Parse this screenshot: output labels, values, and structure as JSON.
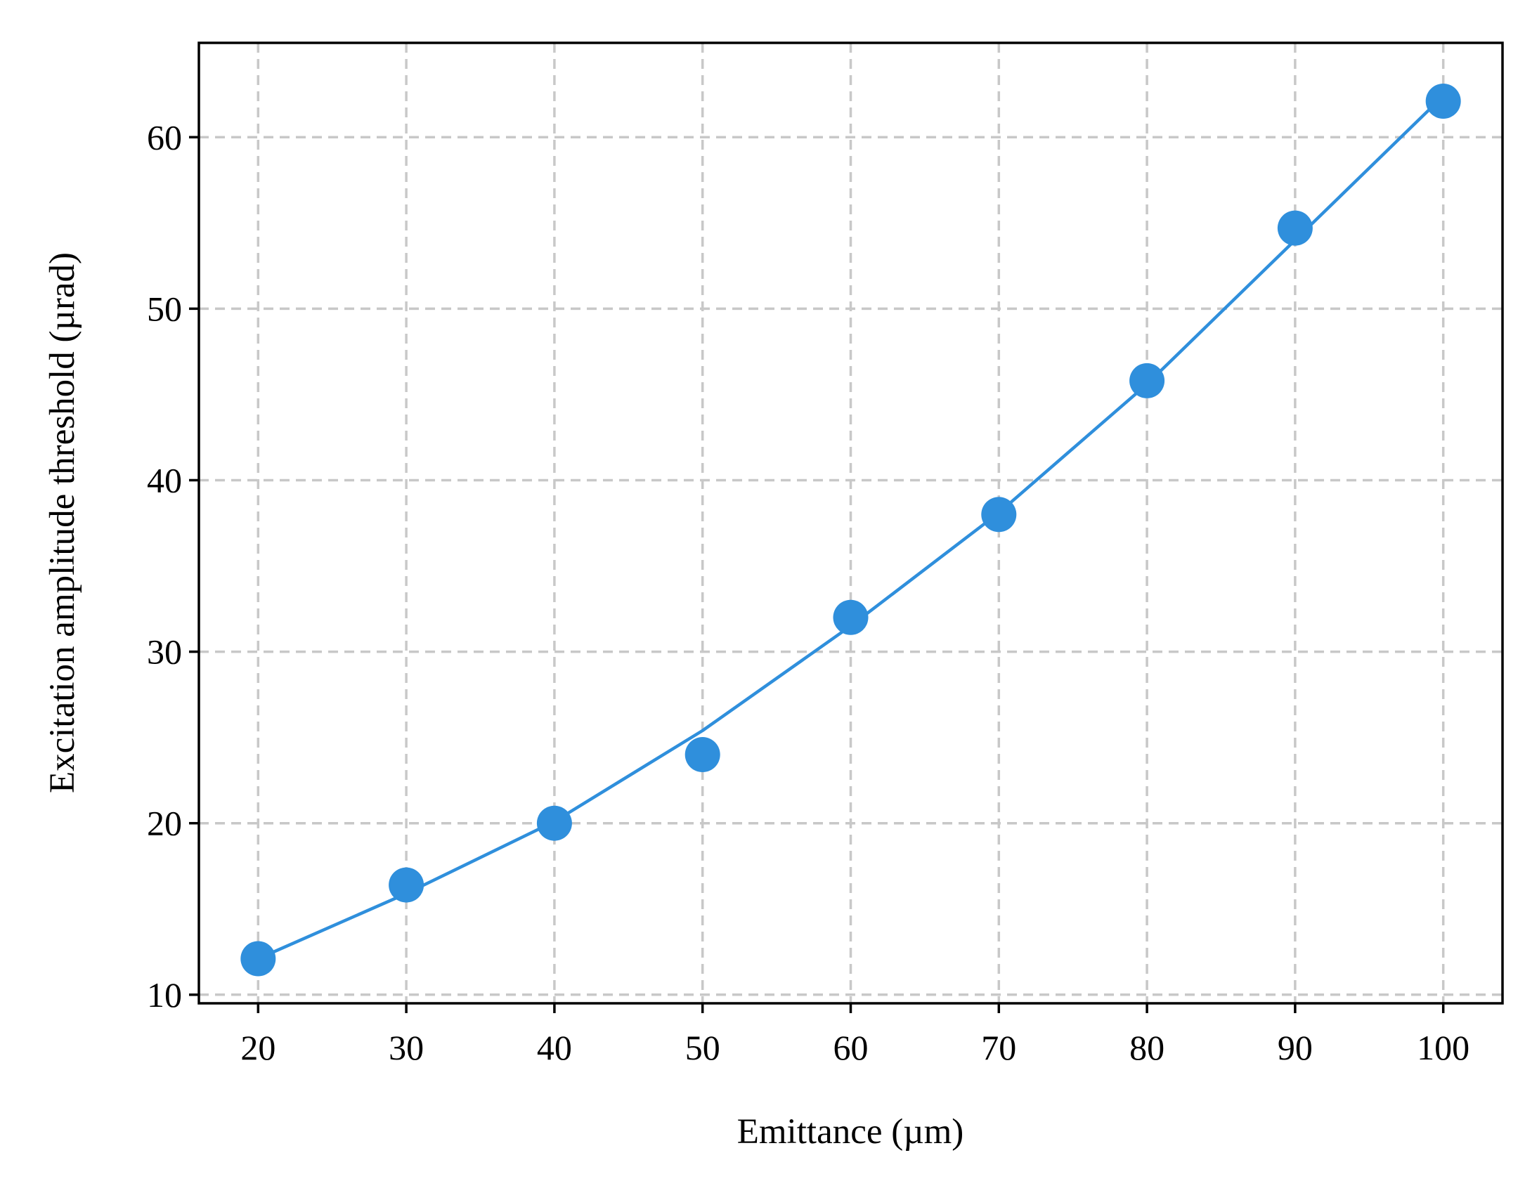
{
  "chart_data": {
    "type": "scatter",
    "title": "",
    "xlabel": "Emittance (µm)",
    "ylabel": "Excitation amplitude threshold (µrad)",
    "xlim": [
      16,
      104
    ],
    "ylim": [
      9.5,
      65.5
    ],
    "xticks": [
      20,
      30,
      40,
      50,
      60,
      70,
      80,
      90,
      100
    ],
    "yticks": [
      10,
      20,
      30,
      40,
      50,
      60
    ],
    "grid": true,
    "grid_style": "dashed",
    "legend": "none",
    "series": [
      {
        "kind": "points",
        "color": "#2f8fdc",
        "x": [
          20,
          30,
          40,
          50,
          60,
          70,
          80,
          90,
          100
        ],
        "y": [
          12.1,
          16.4,
          20.0,
          24.0,
          32.0,
          38.0,
          45.8,
          54.7,
          62.1
        ]
      },
      {
        "kind": "fit-line",
        "color": "#2f8fdc",
        "x": [
          20,
          30,
          40,
          50,
          60,
          70,
          80,
          90,
          100
        ],
        "y": [
          12.1,
          15.9,
          20.1,
          25.4,
          31.5,
          38.1,
          45.6,
          54.0,
          62.4
        ]
      }
    ]
  }
}
